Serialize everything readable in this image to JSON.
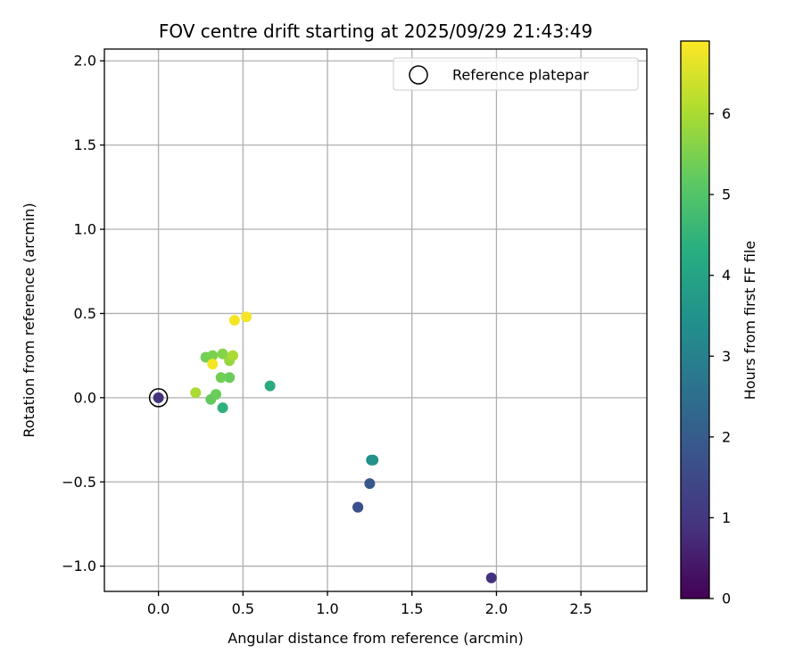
{
  "chart_data": {
    "type": "scatter",
    "title": "FOV centre drift starting at 2025/09/29 21:43:49",
    "xlabel": "Angular distance from reference (arcmin)",
    "ylabel": "Rotation from reference (arcmin)",
    "xlim": [
      -0.32,
      2.89
    ],
    "ylim": [
      -1.15,
      2.07
    ],
    "xticks": [
      0.0,
      0.5,
      1.0,
      1.5,
      2.0,
      2.5
    ],
    "xtick_labels": [
      "0.0",
      "0.5",
      "1.0",
      "1.5",
      "2.0",
      "2.5"
    ],
    "yticks": [
      -1.0,
      -0.5,
      0.0,
      0.5,
      1.0,
      1.5,
      2.0
    ],
    "ytick_labels": [
      "−1.0",
      "−0.5",
      "0.0",
      "0.5",
      "1.0",
      "1.5",
      "2.0"
    ],
    "grid": true,
    "legend": {
      "location": "top-right",
      "entries": [
        {
          "label": "Reference platepar",
          "marker": "open-circle"
        }
      ]
    },
    "reference_point": {
      "x": 0.0,
      "y": 0.0,
      "hours": 1.0
    },
    "points": [
      {
        "x": 1.97,
        "y": -1.07,
        "hours": 1.0
      },
      {
        "x": 1.18,
        "y": -0.65,
        "hours": 1.6
      },
      {
        "x": 1.18,
        "y": -0.65,
        "hours": 1.7
      },
      {
        "x": 1.25,
        "y": -0.51,
        "hours": 1.9
      },
      {
        "x": 1.26,
        "y": -0.37,
        "hours": 3.3
      },
      {
        "x": 1.27,
        "y": -0.37,
        "hours": 3.5
      },
      {
        "x": 0.66,
        "y": 0.07,
        "hours": 4.2
      },
      {
        "x": 0.38,
        "y": -0.06,
        "hours": 4.4
      },
      {
        "x": 0.31,
        "y": -0.01,
        "hours": 5.2
      },
      {
        "x": 0.34,
        "y": 0.02,
        "hours": 5.3
      },
      {
        "x": 0.42,
        "y": 0.12,
        "hours": 5.3
      },
      {
        "x": 0.37,
        "y": 0.12,
        "hours": 5.4
      },
      {
        "x": 0.28,
        "y": 0.24,
        "hours": 5.4
      },
      {
        "x": 0.32,
        "y": 0.25,
        "hours": 5.5
      },
      {
        "x": 0.38,
        "y": 0.26,
        "hours": 5.6
      },
      {
        "x": 0.42,
        "y": 0.22,
        "hours": 5.8
      },
      {
        "x": 0.44,
        "y": 0.25,
        "hours": 6.0
      },
      {
        "x": 0.22,
        "y": 0.03,
        "hours": 6.0
      },
      {
        "x": 0.32,
        "y": 0.2,
        "hours": 6.8
      },
      {
        "x": 0.45,
        "y": 0.46,
        "hours": 6.8
      },
      {
        "x": 0.52,
        "y": 0.48,
        "hours": 6.8
      }
    ],
    "colorbar": {
      "label": "Hours from first FF file",
      "colormap": "viridis",
      "range": [
        0,
        6.9
      ],
      "ticks": [
        0,
        1,
        2,
        3,
        4,
        5,
        6
      ],
      "tick_labels": [
        "0",
        "1",
        "2",
        "3",
        "4",
        "5",
        "6"
      ]
    }
  }
}
